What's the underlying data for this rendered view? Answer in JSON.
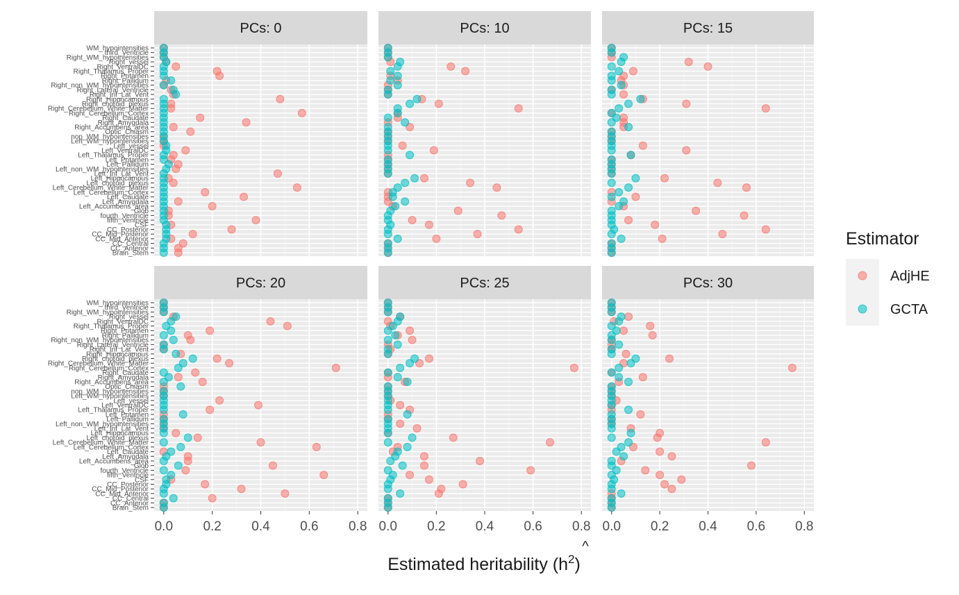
{
  "chart_data": {
    "type": "scatter",
    "xlabel": "Estimated heritability (h",
    "xlabel_superscript": "2",
    "xlabel_hat": "^",
    "xlabel_close": ")",
    "xlim": [
      0,
      0.8
    ],
    "x_ticks": [
      0.0,
      0.2,
      0.4,
      0.6,
      0.8
    ],
    "x_tick_labels": [
      "0.0",
      "0.2",
      "0.4",
      "0.6",
      "0.8"
    ],
    "legend": {
      "title": "Estimator",
      "position": "right",
      "entries": [
        {
          "name": "AdjHE",
          "color": "#F8766D"
        },
        {
          "name": "GCTA",
          "color": "#00BFC4"
        }
      ]
    },
    "categories": [
      "WM_hypointensities",
      "third_Ventricle",
      "Right_WM_hypointensities",
      "Right_vessel",
      "Right_VentralDC",
      "Right_Thalamus_Proper",
      "Right_Putamen",
      "Right_Pallidum",
      "Right_non_WM_hypointensities",
      "Right_Lateral_Ventricle",
      "Right_Inf_Lat_Vent",
      "Right_Hippocampus",
      "Right_choroid_plexus",
      "Right_Cerebellum_White_Matter",
      "Right_Cerebellum_Cortex",
      "Right_Caudate",
      "Right_Amygdala",
      "Right_Accumbens_area",
      "Optic_Chiasm",
      "non_WM_hypointensities",
      "Left_WM_hypointensities",
      "Left_vessel",
      "Left_VentralDC",
      "Left_Thalamus_Proper",
      "Left_Putamen",
      "Left_Pallidum",
      "Left_non_WM_hypointensities",
      "Left_Inf_Lat_Vent",
      "Left_Hippocampus",
      "Left_choroid_plexus",
      "Left_Cerebellum_White_Matter",
      "Left_Cerebellum_Cortex",
      "Left_Caudate",
      "Left_Amygdala",
      "Left_Accumbens_area",
      "Glob",
      "fourth_Ventricle",
      "fifth_Ventricle",
      "CSF",
      "CC_Posterior",
      "CC_Mid_Posterior",
      "CC_Mid_Anterior",
      "CC_Central",
      "CC_Anterior",
      "Brain_Stem"
    ],
    "panels": [
      {
        "label": "PCs: 0",
        "AdjHE": [
          0.0,
          0.0,
          0.0,
          0.01,
          0.05,
          0.22,
          0.23,
          0.01,
          0.0,
          0.03,
          0.04,
          0.48,
          0.03,
          0.03,
          0.57,
          0.15,
          0.34,
          0.04,
          0.11,
          0.0,
          0.0,
          0.0,
          0.09,
          0.04,
          0.03,
          0.06,
          0.05,
          0.47,
          0.02,
          0.04,
          0.55,
          0.17,
          0.33,
          0.06,
          0.2,
          0.02,
          0.02,
          0.38,
          0.03,
          0.28,
          0.12,
          0.03,
          0.08,
          0.06,
          0.06
        ],
        "GCTA": [
          0.0,
          0.0,
          0.0,
          0.01,
          0.0,
          0.0,
          0.0,
          0.03,
          0.0,
          0.04,
          0.05,
          0.0,
          0.0,
          0.0,
          0.0,
          0.0,
          0.0,
          0.0,
          0.0,
          0.0,
          0.0,
          0.01,
          0.01,
          0.0,
          0.0,
          0.02,
          0.01,
          0.0,
          0.0,
          0.0,
          0.0,
          0.0,
          0.0,
          0.0,
          0.0,
          0.0,
          0.0,
          0.0,
          0.01,
          0.01,
          0.01,
          0.01,
          0.0,
          0.0,
          0.0
        ]
      },
      {
        "label": "PCs: 10",
        "AdjHE": [
          0.0,
          0.0,
          0.0,
          0.01,
          0.26,
          0.32,
          0.01,
          0.04,
          0.0,
          0.0,
          0.0,
          0.14,
          0.21,
          0.54,
          0.04,
          0.04,
          0.0,
          0.09,
          0.0,
          0.0,
          0.0,
          0.06,
          0.19,
          0.0,
          0.0,
          0.0,
          0.0,
          0.0,
          0.15,
          0.34,
          0.45,
          0.0,
          0.0,
          0.0,
          0.02,
          0.29,
          0.47,
          0.1,
          0.17,
          0.54,
          0.37,
          0.2,
          0.0,
          0.0,
          0.0
        ],
        "GCTA": [
          0.0,
          0.0,
          0.0,
          0.05,
          0.04,
          0.01,
          0.04,
          0.01,
          0.04,
          0.0,
          0.0,
          0.12,
          0.09,
          0.04,
          0.04,
          0.0,
          0.07,
          0.0,
          0.0,
          0.0,
          0.0,
          0.0,
          0.0,
          0.09,
          0.0,
          0.0,
          0.0,
          0.0,
          0.11,
          0.07,
          0.04,
          0.02,
          0.02,
          0.07,
          0.03,
          0.01,
          0.0,
          0.0,
          0.01,
          0.0,
          0.0,
          0.04,
          0.0,
          0.0,
          0.0
        ]
      },
      {
        "label": "PCs: 15",
        "AdjHE": [
          0.0,
          0.0,
          0.0,
          0.32,
          0.4,
          0.09,
          0.05,
          0.04,
          0.05,
          0.0,
          0.05,
          0.13,
          0.31,
          0.64,
          0.0,
          0.05,
          0.05,
          0.05,
          0.0,
          0.0,
          0.0,
          0.13,
          0.31,
          0.08,
          0.0,
          0.0,
          0.0,
          0.0,
          0.22,
          0.44,
          0.56,
          0.0,
          0.1,
          0.0,
          0.05,
          0.35,
          0.55,
          0.07,
          0.18,
          0.64,
          0.46,
          0.21,
          0.0,
          0.0,
          0.0
        ],
        "GCTA": [
          0.0,
          0.0,
          0.05,
          0.04,
          0.0,
          0.03,
          0.0,
          0.0,
          0.04,
          0.0,
          0.0,
          0.12,
          0.07,
          0.03,
          0.0,
          0.02,
          0.0,
          0.07,
          0.0,
          0.0,
          0.0,
          0.0,
          0.0,
          0.08,
          0.0,
          0.0,
          0.0,
          0.0,
          0.1,
          0.0,
          0.07,
          0.03,
          0.0,
          0.05,
          0.03,
          0.0,
          0.0,
          0.0,
          0.0,
          0.01,
          0.0,
          0.04,
          0.0,
          0.0,
          0.0
        ]
      },
      {
        "label": "PCs: 20",
        "AdjHE": [
          0.0,
          0.0,
          0.0,
          0.04,
          0.44,
          0.51,
          0.19,
          0.1,
          0.11,
          0.0,
          0.0,
          0.07,
          0.22,
          0.27,
          0.71,
          0.13,
          0.06,
          0.16,
          0.0,
          0.0,
          0.0,
          0.23,
          0.39,
          0.19,
          0.0,
          0.0,
          0.0,
          0.0,
          0.05,
          0.14,
          0.4,
          0.63,
          0.0,
          0.1,
          0.1,
          0.45,
          0.09,
          0.66,
          0.03,
          0.17,
          0.32,
          0.5,
          0.2,
          0.0,
          0.0
        ],
        "GCTA": [
          0.0,
          0.0,
          0.0,
          0.05,
          0.03,
          0.01,
          0.03,
          0.0,
          0.04,
          0.0,
          0.0,
          0.05,
          0.12,
          0.08,
          0.06,
          0.0,
          0.02,
          0.0,
          0.07,
          0.0,
          0.0,
          0.0,
          0.0,
          0.0,
          0.08,
          0.0,
          0.0,
          0.0,
          0.0,
          0.1,
          0.0,
          0.07,
          0.03,
          0.01,
          0.0,
          0.06,
          0.0,
          0.03,
          0.01,
          0.01,
          0.0,
          0.0,
          0.04,
          0.0,
          0.0
        ]
      },
      {
        "label": "PCs: 25",
        "AdjHE": [
          0.0,
          0.0,
          0.0,
          0.05,
          0.0,
          0.01,
          0.09,
          0.04,
          0.1,
          0.0,
          0.01,
          0.0,
          0.17,
          0.13,
          0.77,
          0.0,
          0.0,
          0.07,
          0.0,
          0.0,
          0.0,
          0.01,
          0.05,
          0.09,
          0.0,
          0.0,
          0.05,
          0.12,
          0.0,
          0.27,
          0.67,
          0.04,
          0.02,
          0.15,
          0.38,
          0.15,
          0.59,
          0.09,
          0.17,
          0.31,
          0.22,
          0.21,
          0.0,
          0.0,
          0.0
        ],
        "GCTA": [
          0.0,
          0.0,
          0.0,
          0.05,
          0.04,
          0.02,
          0.0,
          0.03,
          0.0,
          0.04,
          0.0,
          0.0,
          0.11,
          0.09,
          0.05,
          0.0,
          0.04,
          0.08,
          0.0,
          0.0,
          0.0,
          0.0,
          0.0,
          0.0,
          0.08,
          0.0,
          0.0,
          0.0,
          0.0,
          0.1,
          0.0,
          0.08,
          0.04,
          0.03,
          0.01,
          0.06,
          0.0,
          0.02,
          0.01,
          0.0,
          0.0,
          0.05,
          0.0,
          0.0,
          0.0
        ]
      },
      {
        "label": "PCs: 30",
        "AdjHE": [
          0.0,
          0.0,
          0.0,
          0.07,
          0.01,
          0.16,
          0.05,
          0.17,
          0.0,
          0.0,
          0.0,
          0.06,
          0.24,
          0.05,
          0.75,
          0.0,
          0.13,
          0.03,
          0.0,
          0.0,
          0.0,
          0.02,
          0.0,
          0.0,
          0.12,
          0.0,
          0.0,
          0.08,
          0.2,
          0.19,
          0.64,
          0.09,
          0.2,
          0.25,
          0.04,
          0.58,
          0.14,
          0.2,
          0.29,
          0.22,
          0.25,
          0.0,
          0.0,
          0.0,
          0.0
        ],
        "GCTA": [
          0.0,
          0.0,
          0.0,
          0.04,
          0.03,
          0.0,
          0.02,
          0.0,
          0.0,
          0.03,
          0.0,
          0.0,
          0.1,
          0.08,
          0.03,
          0.0,
          0.03,
          0.07,
          0.0,
          0.0,
          0.0,
          0.0,
          0.0,
          0.07,
          0.0,
          0.0,
          0.0,
          0.0,
          0.08,
          0.0,
          0.07,
          0.04,
          0.02,
          0.05,
          0.0,
          0.0,
          0.02,
          0.0,
          0.01,
          0.0,
          0.0,
          0.04,
          0.0,
          0.0,
          0.0
        ]
      }
    ]
  }
}
